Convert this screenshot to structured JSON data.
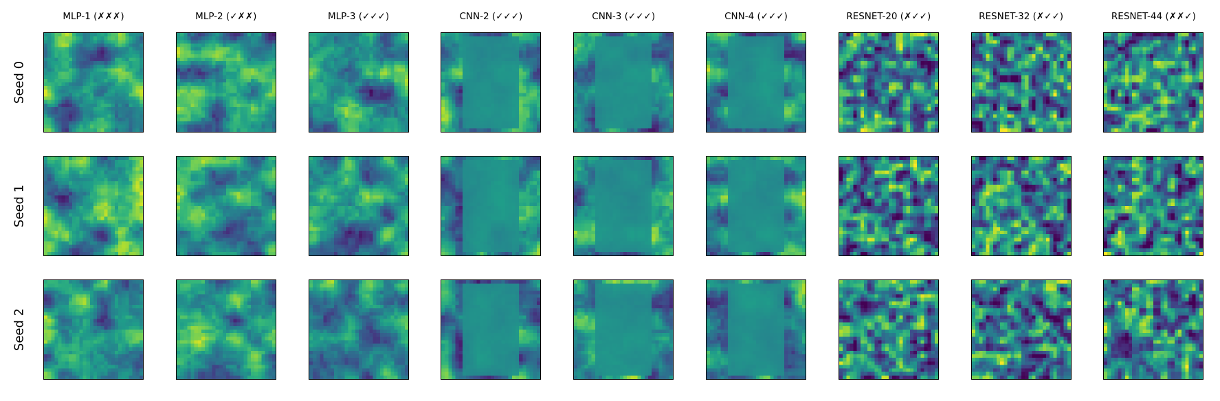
{
  "chart_data": {
    "type": "heatmap",
    "colormap": "viridis",
    "grid": false,
    "columns": [
      "MLP-1 (✗✗✗)",
      "MLP-2 (✓✗✗)",
      "MLP-3 (✓✓✓)",
      "CNN-2 (✓✓✓)",
      "CNN-3 (✓✓✓)",
      "CNN-4 (✓✓✓)",
      "RESNET-20 (✗✓✓)",
      "RESNET-32 (✗✓✓)",
      "RESNET-44 (✗✗✓)"
    ],
    "rows": [
      "Seed 0",
      "Seed 1",
      "Seed 2"
    ]
  }
}
